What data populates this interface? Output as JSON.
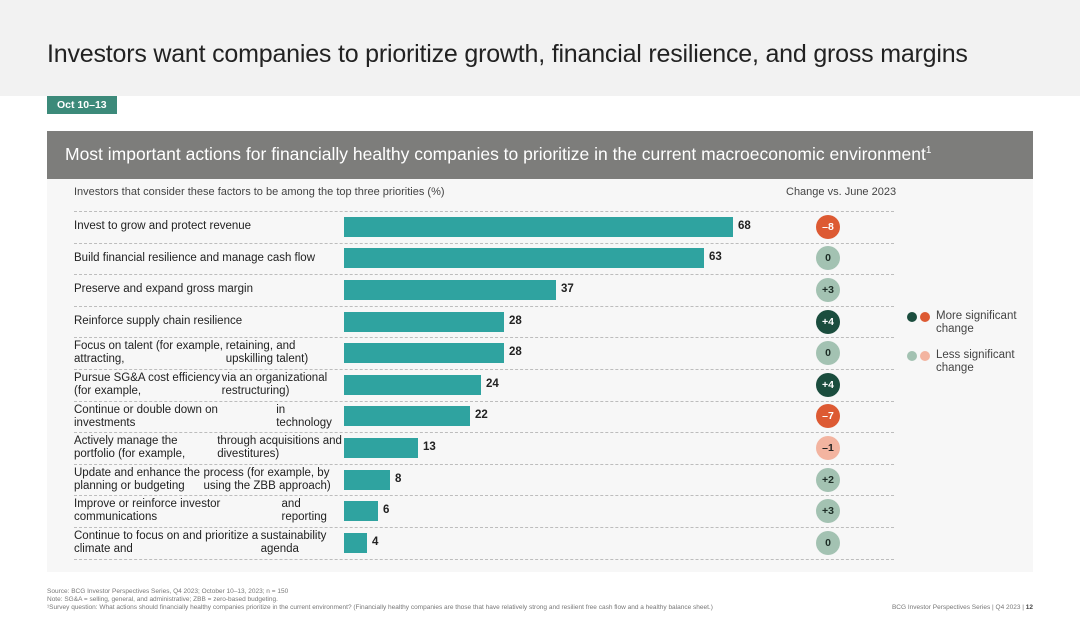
{
  "page": {
    "title": "Investors want companies to prioritize growth, financial resilience, and gross margins",
    "date_badge": "Oct 10–13",
    "banner": "Most important actions for financially healthy companies to prioritize in the current macroeconomic environment",
    "banner_sup": "1"
  },
  "chart_data": {
    "type": "bar",
    "orientation": "horizontal",
    "title": "Most important actions for financially healthy companies to prioritize in the current macroeconomic environment",
    "xlabel": "Investors that consider these factors to be among the top three priorities (%)",
    "change_label": "Change vs. June 2023",
    "xlim": [
      0,
      68
    ],
    "categories": [
      [
        "Invest to grow and protect revenue"
      ],
      [
        "Build financial resilience and manage cash flow"
      ],
      [
        "Preserve and expand gross margin"
      ],
      [
        "Reinforce supply chain resilience"
      ],
      [
        "Focus on talent (for example, attracting,",
        "retaining, and upskilling talent)"
      ],
      [
        "Pursue SG&A cost efficiency (for example,",
        "via an organizational restructuring)"
      ],
      [
        "Continue or double down on investments",
        "in technology"
      ],
      [
        "Actively manage the portfolio (for example,",
        "through acquisitions and divestitures)"
      ],
      [
        "Update and enhance the planning or budgeting",
        "process (for example, by using the ZBB approach)"
      ],
      [
        "Improve or reinforce investor communications",
        "and reporting"
      ],
      [
        "Continue to focus on and prioritize a climate and",
        "sustainability agenda"
      ]
    ],
    "values": [
      68,
      63,
      37,
      28,
      28,
      24,
      22,
      13,
      8,
      6,
      4
    ],
    "changes": [
      {
        "label": "–8",
        "kind": "neg-strong"
      },
      {
        "label": "0",
        "kind": "neutral"
      },
      {
        "label": "+3",
        "kind": "pos-light"
      },
      {
        "label": "+4",
        "kind": "pos-strong"
      },
      {
        "label": "0",
        "kind": "neutral"
      },
      {
        "label": "+4",
        "kind": "pos-strong"
      },
      {
        "label": "–7",
        "kind": "neg-strong"
      },
      {
        "label": "–1",
        "kind": "neg-light"
      },
      {
        "label": "+2",
        "kind": "pos-light"
      },
      {
        "label": "+3",
        "kind": "pos-light"
      },
      {
        "label": "0",
        "kind": "neutral"
      }
    ],
    "colors": {
      "bar": "#2fa3a0",
      "neg-strong": "#dd5a33",
      "neg-light": "#f3b4a0",
      "pos-strong": "#1b4d3e",
      "pos-light": "#a3c2b2",
      "neutral": "#a3c2b2"
    },
    "legend": {
      "strong_label": "More significant change",
      "light_label": "Less significant change"
    }
  },
  "footer": {
    "source": "Source: BCG Investor Perspectives Series, Q4 2023; October 10–13, 2023; n = 150",
    "note": "Note: SG&A = selling, general, and administrative; ZBB = zero-based budgeting.",
    "survey": "¹Survey question: What actions should financially healthy companies prioritize in the current environment? (Financially healthy companies are those that have relatively strong and resilient free cash flow and a healthy balance sheet.)",
    "right_text": "BCG Investor Perspectives Series | Q4 2023 |",
    "page_number": "12"
  }
}
